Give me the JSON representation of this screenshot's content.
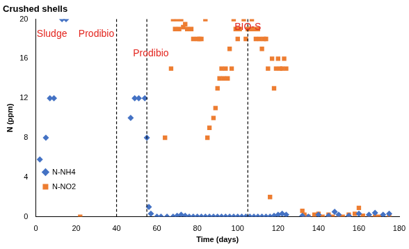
{
  "chart_data": {
    "type": "scatter",
    "title": "Crushed shells",
    "x_label": "Time (days)",
    "y_label": "N (ppm)",
    "xlim": [
      0,
      180
    ],
    "xticks": [
      0,
      20,
      40,
      60,
      80,
      100,
      120,
      140,
      160,
      180
    ],
    "ylim": [
      0,
      20
    ],
    "yticks": [
      0,
      4,
      8,
      12,
      16,
      20
    ],
    "grid": false,
    "legend": "upper right",
    "vlines": [
      40,
      55,
      105
    ],
    "annotations": [
      {
        "text": "Sludge",
        "x": 8,
        "y": 18.5
      },
      {
        "text": "Prodibio",
        "x": 30,
        "y": 18.5
      },
      {
        "text": "Prodibio",
        "x": 57,
        "y": 16.5
      },
      {
        "text": "BIO-S",
        "x": 105,
        "y": 19.2
      }
    ],
    "series": [
      {
        "name": "N-NH4",
        "color": "#4472c4",
        "marker": "diamond",
        "x": [
          2,
          5,
          7,
          9,
          13,
          15,
          47,
          49,
          51,
          54,
          55,
          56,
          57,
          60,
          62,
          65,
          68,
          70,
          72,
          74,
          76,
          78,
          80,
          82,
          84,
          86,
          88,
          90,
          92,
          94,
          96,
          98,
          100,
          102,
          104,
          106,
          108,
          110,
          112,
          114,
          116,
          118,
          120,
          122,
          124,
          132,
          135,
          140,
          145,
          148,
          150,
          155,
          160,
          165,
          168,
          172,
          175
        ],
        "values": [
          5.8,
          8,
          12,
          12,
          20,
          20,
          10,
          12,
          12,
          12,
          8,
          1,
          0.3,
          0,
          0,
          0,
          0,
          0.1,
          0.2,
          0.1,
          0,
          0,
          0,
          0,
          0,
          0,
          0,
          0,
          0,
          0,
          0,
          0,
          0,
          0,
          0,
          0,
          0,
          0,
          0,
          0,
          0,
          0.1,
          0.2,
          0.3,
          0.2,
          0.1,
          0,
          0.2,
          0.1,
          0.5,
          0.2,
          0.1,
          0.3,
          0.2,
          0.4,
          0.2,
          0.3
        ]
      },
      {
        "name": "N-NO2",
        "color": "#ed7d31",
        "marker": "square",
        "x": [
          22,
          64,
          67,
          68,
          69,
          70,
          71,
          72,
          73,
          74,
          75,
          77,
          78,
          80,
          81,
          82,
          84,
          85,
          86,
          88,
          89,
          90,
          91,
          92,
          93,
          94,
          95,
          96,
          97,
          98,
          99,
          100,
          101,
          103,
          104,
          105,
          106,
          107,
          108,
          109,
          110,
          111,
          112,
          113,
          114,
          115,
          116,
          117,
          118,
          119,
          120,
          121,
          122,
          123,
          124,
          132,
          133,
          135,
          138,
          140,
          142,
          145,
          147,
          150,
          152,
          155,
          158,
          160,
          162,
          165,
          168,
          170,
          175
        ],
        "values": [
          0,
          8,
          15,
          20,
          19,
          20,
          19,
          20,
          19.2,
          19.5,
          19,
          19,
          18,
          18,
          18,
          18,
          20,
          8,
          9,
          10,
          11,
          13,
          14,
          15,
          14,
          15,
          14,
          17,
          15,
          20,
          19,
          18,
          19,
          20,
          18,
          19,
          19,
          20,
          19,
          18,
          19,
          18,
          17,
          18,
          18,
          15,
          2,
          16,
          13,
          15,
          16,
          15,
          15,
          16,
          15,
          0.6,
          0.2,
          0,
          0.2,
          0.3,
          0,
          0.2,
          0,
          0.1,
          0,
          0.2,
          0.3,
          0.9,
          0.1,
          0,
          0,
          0,
          0.1
        ]
      }
    ]
  }
}
